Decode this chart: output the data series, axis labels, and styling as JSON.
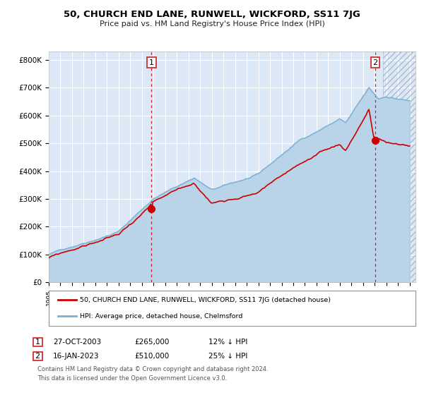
{
  "title": "50, CHURCH END LANE, RUNWELL, WICKFORD, SS11 7JG",
  "subtitle": "Price paid vs. HM Land Registry's House Price Index (HPI)",
  "legend_line1": "50, CHURCH END LANE, RUNWELL, WICKFORD, SS11 7JG (detached house)",
  "legend_line2": "HPI: Average price, detached house, Chelmsford",
  "annotation1_date": "27-OCT-2003",
  "annotation1_price": "£265,000",
  "annotation1_hpi": "12% ↓ HPI",
  "annotation2_date": "16-JAN-2023",
  "annotation2_price": "£510,000",
  "annotation2_hpi": "25% ↓ HPI",
  "footnote1": "Contains HM Land Registry data © Crown copyright and database right 2024.",
  "footnote2": "This data is licensed under the Open Government Licence v3.0.",
  "sale1_year": 2003.82,
  "sale1_price": 265000,
  "sale2_year": 2023.04,
  "sale2_price": 510000,
  "hpi_color": "#7ab0d4",
  "property_color": "#cc0000",
  "plot_bg_color": "#dce8f5",
  "grid_color": "#ffffff",
  "hatch_color": "#aabbcc",
  "ylim_min": 0,
  "ylim_max": 830000,
  "xlim_min": 1995,
  "xlim_max": 2026.5
}
